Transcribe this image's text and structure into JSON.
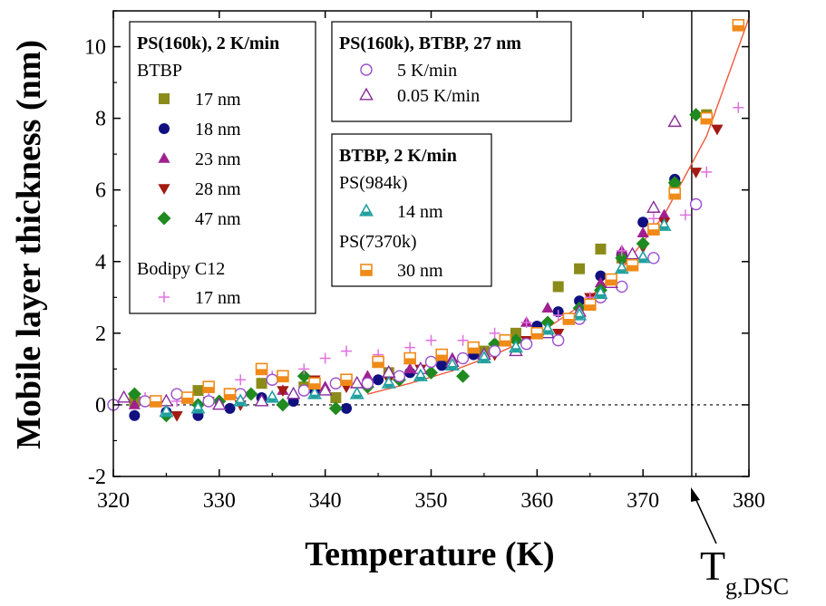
{
  "chart_data": {
    "type": "scatter",
    "xlabel": "Temperature (K)",
    "ylabel": "Mobile layer thickness (nm)",
    "xlim": [
      320,
      380
    ],
    "ylim": [
      -2,
      11
    ],
    "x_ticks": [
      "320",
      "330",
      "340",
      "350",
      "360",
      "370",
      "380"
    ],
    "y_ticks": [
      "-2",
      "0",
      "2",
      "4",
      "6",
      "8",
      "10"
    ],
    "zero_line": 0,
    "tg_line_x": 374.6,
    "tg_label": {
      "main": "T",
      "sub": "g,DSC"
    },
    "legends": [
      {
        "title": "PS(160k), 2 K/min",
        "groups": [
          {
            "header": "BTBP",
            "entries": [
              {
                "series": 0,
                "label": "17 nm"
              },
              {
                "series": 1,
                "label": "18 nm"
              },
              {
                "series": 2,
                "label": "23 nm"
              },
              {
                "series": 3,
                "label": "28 nm"
              },
              {
                "series": 4,
                "label": "47 nm"
              }
            ]
          },
          {
            "header": "Bodipy C12",
            "entries": [
              {
                "series": 5,
                "label": "17 nm"
              }
            ]
          }
        ]
      },
      {
        "title": "PS(160k), BTBP, 27 nm",
        "groups": [
          {
            "header": "",
            "entries": [
              {
                "series": 6,
                "label": "5 K/min"
              },
              {
                "series": 7,
                "label": "0.05 K/min"
              }
            ]
          }
        ]
      },
      {
        "title": "BTBP, 2 K/min",
        "groups": [
          {
            "header": "PS(984k)",
            "entries": [
              {
                "series": 8,
                "label": "14 nm"
              }
            ]
          },
          {
            "header": "PS(7370k)",
            "entries": [
              {
                "series": 9,
                "label": "30 nm"
              }
            ]
          }
        ]
      }
    ],
    "series": [
      {
        "name": "17 nm",
        "marker": "square",
        "color": "#8b8b1a",
        "points": [
          [
            322,
            0.1
          ],
          [
            328,
            0.4
          ],
          [
            334,
            0.6
          ],
          [
            338,
            0.5
          ],
          [
            341,
            0.2
          ],
          [
            346,
            0.9
          ],
          [
            351,
            1.2
          ],
          [
            355,
            1.5
          ],
          [
            358,
            2.0
          ],
          [
            362,
            3.3
          ],
          [
            364,
            3.8
          ],
          [
            366,
            4.35
          ],
          [
            368,
            4.1
          ],
          [
            373,
            6.2
          ],
          [
            376,
            8.1
          ]
        ]
      },
      {
        "name": "18 nm",
        "marker": "circle",
        "color": "#101080",
        "points": [
          [
            322,
            -0.3
          ],
          [
            325,
            -0.2
          ],
          [
            328,
            -0.3
          ],
          [
            331,
            -0.1
          ],
          [
            334,
            0.2
          ],
          [
            337,
            0.1
          ],
          [
            339,
            0.4
          ],
          [
            342,
            -0.1
          ],
          [
            345,
            0.7
          ],
          [
            348,
            0.9
          ],
          [
            351,
            1.1
          ],
          [
            354,
            1.4
          ],
          [
            357,
            1.8
          ],
          [
            360,
            2.2
          ],
          [
            362,
            2.6
          ],
          [
            364,
            2.9
          ],
          [
            366,
            3.6
          ],
          [
            368,
            4.2
          ],
          [
            370,
            5.1
          ],
          [
            373,
            6.3
          ]
        ]
      },
      {
        "name": "23 nm",
        "marker": "triangle-up",
        "color": "#a0208f",
        "points": [
          [
            322,
            0.0
          ],
          [
            327,
            0.2
          ],
          [
            331,
            0.3
          ],
          [
            336,
            0.4
          ],
          [
            340,
            0.5
          ],
          [
            344,
            0.8
          ],
          [
            348,
            1.0
          ],
          [
            352,
            1.3
          ],
          [
            356,
            1.6
          ],
          [
            359,
            2.3
          ],
          [
            361,
            2.7
          ],
          [
            363,
            2.4
          ],
          [
            366,
            3.4
          ],
          [
            368,
            4.3
          ],
          [
            370,
            4.8
          ],
          [
            372,
            5.3
          ]
        ]
      },
      {
        "name": "28 nm",
        "marker": "triangle-down",
        "color": "#a31a12",
        "points": [
          [
            323,
            0.1
          ],
          [
            326,
            -0.3
          ],
          [
            329,
            0.1
          ],
          [
            332,
            0.0
          ],
          [
            336,
            0.4
          ],
          [
            339,
            0.7
          ],
          [
            342,
            0.5
          ],
          [
            346,
            0.7
          ],
          [
            349,
            1.0
          ],
          [
            352,
            1.1
          ],
          [
            356,
            1.4
          ],
          [
            359,
            1.8
          ],
          [
            362,
            2.0
          ],
          [
            365,
            3.0
          ],
          [
            368,
            4.0
          ],
          [
            370,
            4.4
          ],
          [
            372,
            5.1
          ],
          [
            375,
            6.5
          ],
          [
            377,
            7.7
          ]
        ]
      },
      {
        "name": "47 nm",
        "marker": "diamond",
        "color": "#1f8a1f",
        "points": [
          [
            322,
            0.3
          ],
          [
            325,
            -0.3
          ],
          [
            328,
            0.0
          ],
          [
            330,
            0.1
          ],
          [
            333,
            0.3
          ],
          [
            336,
            0.0
          ],
          [
            338,
            0.8
          ],
          [
            341,
            -0.1
          ],
          [
            344,
            0.5
          ],
          [
            347,
            0.7
          ],
          [
            350,
            0.9
          ],
          [
            353,
            0.8
          ],
          [
            356,
            1.7
          ],
          [
            358,
            1.8
          ],
          [
            361,
            2.3
          ],
          [
            364,
            2.7
          ],
          [
            366,
            3.2
          ],
          [
            368,
            4.1
          ],
          [
            370,
            4.5
          ],
          [
            373,
            6.2
          ],
          [
            375,
            8.1
          ]
        ]
      },
      {
        "name": "17 nm",
        "marker": "plus",
        "color": "#e070e0",
        "points": [
          [
            323,
            0.2
          ],
          [
            326,
            0.1
          ],
          [
            329,
            0.4
          ],
          [
            332,
            0.7
          ],
          [
            335,
            0.8
          ],
          [
            338,
            1.0
          ],
          [
            340,
            1.3
          ],
          [
            342,
            1.5
          ],
          [
            345,
            1.4
          ],
          [
            348,
            1.6
          ],
          [
            350,
            1.8
          ],
          [
            353,
            1.8
          ],
          [
            356,
            2.0
          ],
          [
            359,
            2.3
          ],
          [
            362,
            2.5
          ],
          [
            365,
            3.0
          ],
          [
            368,
            4.3
          ],
          [
            371,
            5.2
          ],
          [
            374,
            5.3
          ],
          [
            376,
            6.5
          ],
          [
            379,
            8.3
          ]
        ]
      },
      {
        "name": "5 K/min",
        "marker": "circle-open",
        "color": "#9b4fd0",
        "points": [
          [
            320,
            0.0
          ],
          [
            323,
            0.1
          ],
          [
            326,
            0.3
          ],
          [
            329,
            0.1
          ],
          [
            332,
            0.3
          ],
          [
            335,
            0.7
          ],
          [
            338,
            0.4
          ],
          [
            341,
            0.6
          ],
          [
            344,
            0.6
          ],
          [
            347,
            0.8
          ],
          [
            350,
            1.2
          ],
          [
            353,
            1.3
          ],
          [
            356,
            1.5
          ],
          [
            359,
            1.7
          ],
          [
            362,
            1.8
          ],
          [
            364,
            2.4
          ],
          [
            366,
            3.0
          ],
          [
            368,
            3.3
          ],
          [
            371,
            4.1
          ],
          [
            375,
            5.6
          ]
        ]
      },
      {
        "name": "0.05 K/min",
        "marker": "triangle-open",
        "color": "#8a2a9a",
        "points": [
          [
            321,
            0.2
          ],
          [
            325,
            0.1
          ],
          [
            330,
            0.0
          ],
          [
            334,
            0.1
          ],
          [
            337,
            0.3
          ],
          [
            340,
            0.4
          ],
          [
            343,
            0.6
          ],
          [
            346,
            0.9
          ],
          [
            349,
            1.0
          ],
          [
            352,
            1.2
          ],
          [
            355,
            1.4
          ],
          [
            358,
            1.5
          ],
          [
            361,
            2.0
          ],
          [
            364,
            2.6
          ],
          [
            367,
            3.4
          ],
          [
            369,
            4.2
          ],
          [
            371,
            5.5
          ],
          [
            373,
            7.9
          ]
        ]
      },
      {
        "name": "14 nm",
        "marker": "triangle-teal",
        "color": "#22a0a0",
        "points": [
          [
            325,
            -0.2
          ],
          [
            328,
            -0.1
          ],
          [
            332,
            0.1
          ],
          [
            335,
            0.2
          ],
          [
            339,
            0.3
          ],
          [
            343,
            0.3
          ],
          [
            346,
            0.6
          ],
          [
            349,
            0.8
          ],
          [
            352,
            1.1
          ],
          [
            355,
            1.3
          ],
          [
            358,
            1.6
          ],
          [
            361,
            2.1
          ],
          [
            364,
            2.5
          ],
          [
            366,
            3.1
          ],
          [
            368,
            3.8
          ],
          [
            370,
            4.1
          ],
          [
            372,
            5.0
          ]
        ]
      },
      {
        "name": "30 nm",
        "marker": "square-half",
        "color": "#f08a18",
        "points": [
          [
            324,
            0.1
          ],
          [
            327,
            0.2
          ],
          [
            329,
            0.5
          ],
          [
            331,
            0.3
          ],
          [
            334,
            1.0
          ],
          [
            336,
            0.8
          ],
          [
            339,
            0.6
          ],
          [
            342,
            0.7
          ],
          [
            345,
            1.2
          ],
          [
            348,
            1.3
          ],
          [
            351,
            1.4
          ],
          [
            354,
            1.6
          ],
          [
            357,
            1.8
          ],
          [
            360,
            2.0
          ],
          [
            363,
            2.4
          ],
          [
            365,
            2.8
          ],
          [
            367,
            3.5
          ],
          [
            369,
            3.9
          ],
          [
            371,
            4.9
          ],
          [
            373,
            5.9
          ],
          [
            376,
            8.0
          ],
          [
            379,
            10.6
          ]
        ]
      }
    ],
    "fit_curve": {
      "color": "#f05a3c",
      "points": [
        [
          344,
          0.3
        ],
        [
          348,
          0.6
        ],
        [
          352,
          0.95
        ],
        [
          356,
          1.4
        ],
        [
          360,
          1.95
        ],
        [
          364,
          2.75
        ],
        [
          368,
          3.8
        ],
        [
          372,
          5.3
        ],
        [
          376,
          7.5
        ],
        [
          380,
          10.8
        ]
      ]
    },
    "grid": false
  }
}
